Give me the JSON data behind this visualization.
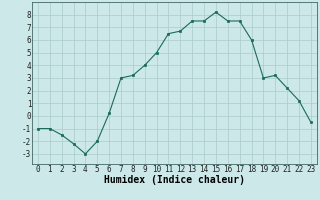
{
  "x": [
    0,
    1,
    2,
    3,
    4,
    5,
    6,
    7,
    8,
    9,
    10,
    11,
    12,
    13,
    14,
    15,
    16,
    17,
    18,
    19,
    20,
    21,
    22,
    23
  ],
  "y": [
    -1,
    -1,
    -1.5,
    -2.2,
    -3,
    -2,
    0.2,
    3,
    3.2,
    4,
    5,
    6.5,
    6.7,
    7.5,
    7.5,
    8.2,
    7.5,
    7.5,
    6,
    3,
    3.2,
    2.2,
    1.2,
    -0.5
  ],
  "line_color": "#1a6b5a",
  "marker_color": "#1a6b5a",
  "bg_color": "#cce8e8",
  "grid_color": "#aacccc",
  "xlabel": "Humidex (Indice chaleur)",
  "xlim": [
    -0.5,
    23.5
  ],
  "ylim": [
    -3.8,
    9.0
  ],
  "xticks": [
    0,
    1,
    2,
    3,
    4,
    5,
    6,
    7,
    8,
    9,
    10,
    11,
    12,
    13,
    14,
    15,
    16,
    17,
    18,
    19,
    20,
    21,
    22,
    23
  ],
  "yticks": [
    -3,
    -2,
    -1,
    0,
    1,
    2,
    3,
    4,
    5,
    6,
    7,
    8
  ],
  "xlabel_fontsize": 7,
  "tick_fontsize": 5.5
}
